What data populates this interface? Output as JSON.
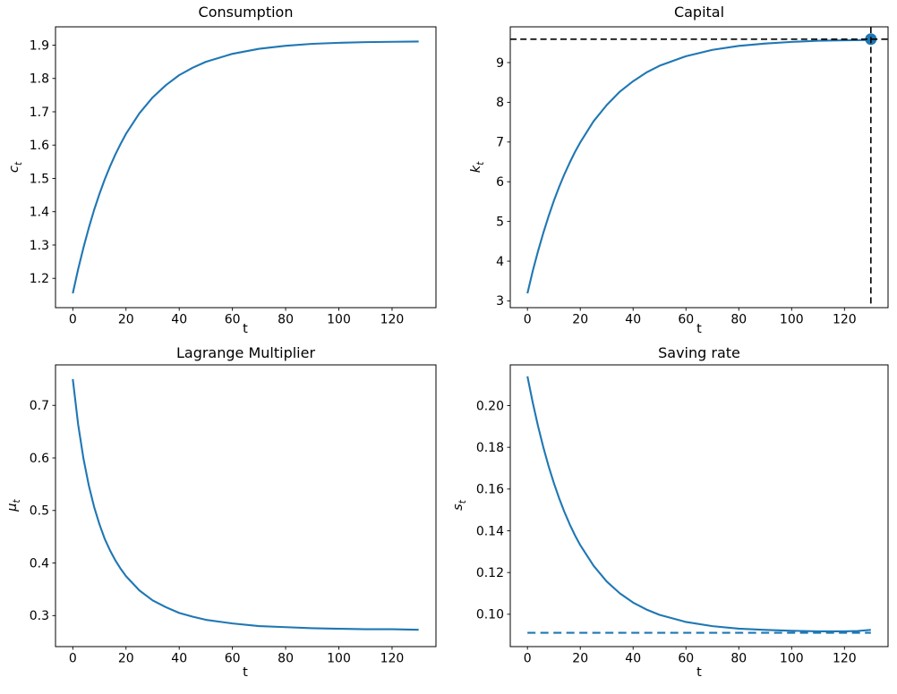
{
  "figure": {
    "background": "#ffffff",
    "text_color": "#000000",
    "accent_color": "#1f77b4"
  },
  "chart_data": [
    {
      "type": "line",
      "title": "Consumption",
      "xlabel": "t",
      "ylabel": {
        "base": "c",
        "sub": "t"
      },
      "xlim": [
        -6.5,
        136.5
      ],
      "ylim": [
        1.112,
        1.955
      ],
      "grid": false,
      "legend": "none",
      "xticks": {
        "values": [
          0,
          20,
          40,
          60,
          80,
          100,
          120
        ],
        "labels": [
          "0",
          "20",
          "40",
          "60",
          "80",
          "100",
          "120"
        ]
      },
      "yticks": {
        "values": [
          1.2,
          1.3,
          1.4,
          1.5,
          1.6,
          1.7,
          1.8,
          1.9
        ],
        "labels": [
          "1.2",
          "1.3",
          "1.4",
          "1.5",
          "1.6",
          "1.7",
          "1.8",
          "1.9"
        ]
      },
      "series": [
        {
          "name": "consumption-path",
          "color": "#1f77b4",
          "dash": "solid",
          "width": 2.1,
          "x": [
            0,
            2,
            4,
            6,
            8,
            10,
            12,
            14,
            16,
            18,
            20,
            25,
            30,
            35,
            40,
            45,
            50,
            60,
            70,
            80,
            90,
            100,
            110,
            120,
            130
          ],
          "y": [
            1.155,
            1.227,
            1.292,
            1.351,
            1.405,
            1.453,
            1.497,
            1.536,
            1.572,
            1.604,
            1.634,
            1.695,
            1.743,
            1.78,
            1.81,
            1.832,
            1.85,
            1.874,
            1.889,
            1.898,
            1.904,
            1.907,
            1.909,
            1.91,
            1.911
          ]
        }
      ]
    },
    {
      "type": "line",
      "title": "Capital",
      "xlabel": "t",
      "ylabel": {
        "base": "k",
        "sub": "t"
      },
      "xlim": [
        -6.5,
        136.5
      ],
      "ylim": [
        2.83,
        9.9
      ],
      "grid": false,
      "legend": "none",
      "xticks": {
        "values": [
          0,
          20,
          40,
          60,
          80,
          100,
          120
        ],
        "labels": [
          "0",
          "20",
          "40",
          "60",
          "80",
          "100",
          "120"
        ]
      },
      "yticks": {
        "values": [
          3,
          4,
          5,
          6,
          7,
          8,
          9
        ],
        "labels": [
          "3",
          "4",
          "5",
          "6",
          "7",
          "8",
          "9"
        ]
      },
      "series": [
        {
          "name": "capital-path",
          "color": "#1f77b4",
          "dash": "solid",
          "width": 2.1,
          "x": [
            0,
            2,
            4,
            6,
            8,
            10,
            12,
            14,
            16,
            18,
            20,
            25,
            30,
            35,
            40,
            45,
            50,
            60,
            70,
            80,
            90,
            100,
            110,
            120,
            130
          ],
          "y": [
            3.19,
            3.75,
            4.25,
            4.71,
            5.13,
            5.52,
            5.87,
            6.19,
            6.48,
            6.75,
            6.99,
            7.52,
            7.93,
            8.27,
            8.53,
            8.75,
            8.92,
            9.16,
            9.32,
            9.42,
            9.48,
            9.52,
            9.55,
            9.56,
            9.57
          ]
        }
      ],
      "hlines": [
        {
          "name": "steady-state-capital-hline",
          "y": 9.59,
          "color": "#000000",
          "dash": "dashed",
          "width": 1.6
        }
      ],
      "vlines": [
        {
          "name": "terminal-time-vline",
          "x": 130,
          "color": "#000000",
          "dash": "dashed",
          "width": 1.6
        }
      ],
      "markers": [
        {
          "name": "terminal-capital-marker",
          "x": 130,
          "y": 9.59,
          "color": "#1f77b4",
          "radius": 6.5
        }
      ]
    },
    {
      "type": "line",
      "title": "Lagrange Multiplier",
      "xlabel": "t",
      "ylabel": {
        "base": "μ",
        "sub": "t"
      },
      "xlim": [
        -6.5,
        136.5
      ],
      "ylim": [
        0.241,
        0.777
      ],
      "grid": false,
      "legend": "none",
      "xticks": {
        "values": [
          0,
          20,
          40,
          60,
          80,
          100,
          120
        ],
        "labels": [
          "0",
          "20",
          "40",
          "60",
          "80",
          "100",
          "120"
        ]
      },
      "yticks": {
        "values": [
          0.3,
          0.4,
          0.5,
          0.6,
          0.7
        ],
        "labels": [
          "0.3",
          "0.4",
          "0.5",
          "0.6",
          "0.7"
        ]
      },
      "series": [
        {
          "name": "lagrange-multiplier-path",
          "color": "#1f77b4",
          "dash": "solid",
          "width": 2.1,
          "x": [
            0,
            2,
            4,
            6,
            8,
            10,
            12,
            14,
            16,
            18,
            20,
            25,
            30,
            35,
            40,
            45,
            50,
            60,
            70,
            80,
            90,
            100,
            110,
            120,
            130
          ],
          "y": [
            0.75,
            0.664,
            0.599,
            0.548,
            0.507,
            0.474,
            0.446,
            0.424,
            0.405,
            0.389,
            0.375,
            0.348,
            0.329,
            0.316,
            0.305,
            0.298,
            0.292,
            0.285,
            0.28,
            0.278,
            0.276,
            0.275,
            0.274,
            0.274,
            0.273
          ]
        }
      ]
    },
    {
      "type": "line",
      "title": "Saving rate",
      "xlabel": "t",
      "ylabel": {
        "base": "s",
        "sub": "t"
      },
      "xlim": [
        -6.5,
        136.5
      ],
      "ylim": [
        0.0845,
        0.2195
      ],
      "grid": false,
      "legend": "none",
      "xticks": {
        "values": [
          0,
          20,
          40,
          60,
          80,
          100,
          120
        ],
        "labels": [
          "0",
          "20",
          "40",
          "60",
          "80",
          "100",
          "120"
        ]
      },
      "yticks": {
        "values": [
          0.1,
          0.12,
          0.14,
          0.16,
          0.18,
          0.2
        ],
        "labels": [
          "0.10",
          "0.12",
          "0.14",
          "0.16",
          "0.18",
          "0.20"
        ]
      },
      "series": [
        {
          "name": "steady-state-saving-rate-line",
          "color": "#1f77b4",
          "dash": "dashed",
          "width": 2.1,
          "x": [
            0,
            130
          ],
          "y": [
            0.0911,
            0.0911
          ]
        },
        {
          "name": "saving-rate-path",
          "color": "#1f77b4",
          "dash": "solid",
          "width": 2.1,
          "x": [
            0,
            2,
            4,
            6,
            8,
            10,
            12,
            14,
            16,
            18,
            20,
            25,
            30,
            35,
            40,
            45,
            50,
            60,
            70,
            80,
            90,
            100,
            110,
            120,
            125,
            130
          ],
          "y": [
            0.214,
            0.2015,
            0.1902,
            0.1801,
            0.171,
            0.1629,
            0.1556,
            0.149,
            0.1431,
            0.1378,
            0.1331,
            0.1233,
            0.1157,
            0.11,
            0.1056,
            0.1023,
            0.0997,
            0.0963,
            0.0943,
            0.0931,
            0.0925,
            0.0921,
            0.0918,
            0.0918,
            0.092,
            0.0925
          ]
        }
      ]
    }
  ]
}
